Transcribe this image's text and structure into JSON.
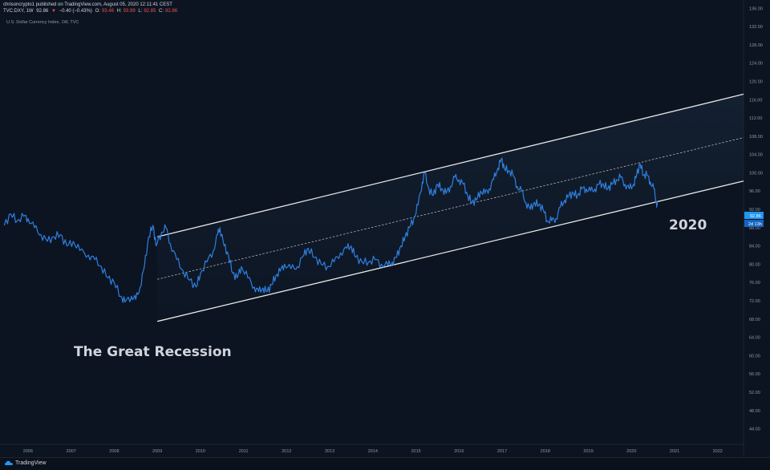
{
  "header": {
    "publisher_line": "chrisoncrypto1 published on TradingView.com, August 05, 2020 12:11:41 CEST",
    "symbol": "TVC:DXY, 1W",
    "last": "92.86",
    "change": "−0.40 (−0.43%)",
    "open_label": "O:",
    "open": "93.46",
    "high_label": "H:",
    "high": "93.99",
    "low_label": "L:",
    "low": "92.85",
    "close_label": "C:",
    "close": "92.86"
  },
  "chart_title": "U.S. Dollar Currency Index, 1W, TVC",
  "price_badge": "92.86",
  "countdown_badge": "2d 13h",
  "annotations": {
    "recession": "The Great Recession",
    "year2020": "2020"
  },
  "footer": {
    "brand": "TradingView"
  },
  "colors": {
    "background": "#0c1421",
    "line": "#2f7fe0",
    "channel": "#e6e6e6",
    "badge": "#2196f3"
  },
  "chart_data": {
    "type": "line",
    "xlabel": "",
    "ylabel": "",
    "xlim": [
      2005.35,
      2022.6
    ],
    "ylim": [
      40.6,
      137.8
    ],
    "x_ticks": [
      "2006",
      "2007",
      "2008",
      "2009",
      "2010",
      "2011",
      "2012",
      "2013",
      "2014",
      "2015",
      "2016",
      "2017",
      "2018",
      "2019",
      "2020",
      "2021",
      "2022"
    ],
    "y_ticks": [
      44,
      48,
      52,
      56,
      60,
      64,
      68,
      72,
      76,
      80,
      84,
      88,
      92,
      96,
      100,
      104,
      108,
      112,
      116,
      120,
      124,
      128,
      132,
      136
    ],
    "series": [
      {
        "values": [
          [
            2005.45,
            88.5
          ],
          [
            2005.6,
            91.0
          ],
          [
            2005.75,
            89.5
          ],
          [
            2005.9,
            90.5
          ],
          [
            2006.0,
            90.0
          ],
          [
            2006.15,
            88.0
          ],
          [
            2006.3,
            86.5
          ],
          [
            2006.45,
            85.0
          ],
          [
            2006.6,
            86.0
          ],
          [
            2006.75,
            86.5
          ],
          [
            2006.9,
            84.0
          ],
          [
            2007.05,
            85.0
          ],
          [
            2007.2,
            83.0
          ],
          [
            2007.4,
            82.0
          ],
          [
            2007.55,
            81.0
          ],
          [
            2007.7,
            79.5
          ],
          [
            2007.85,
            77.0
          ],
          [
            2008.0,
            76.0
          ],
          [
            2008.15,
            73.0
          ],
          [
            2008.25,
            71.7
          ],
          [
            2008.4,
            73.0
          ],
          [
            2008.5,
            72.3
          ],
          [
            2008.6,
            75.0
          ],
          [
            2008.7,
            79.5
          ],
          [
            2008.8,
            86.0
          ],
          [
            2008.9,
            88.5
          ],
          [
            2008.97,
            84.0
          ],
          [
            2009.1,
            87.0
          ],
          [
            2009.2,
            88.0
          ],
          [
            2009.3,
            84.5
          ],
          [
            2009.45,
            81.0
          ],
          [
            2009.6,
            78.5
          ],
          [
            2009.75,
            76.5
          ],
          [
            2009.9,
            75.0
          ],
          [
            2010.0,
            78.0
          ],
          [
            2010.15,
            80.5
          ],
          [
            2010.3,
            83.0
          ],
          [
            2010.4,
            86.5
          ],
          [
            2010.45,
            88.0
          ],
          [
            2010.55,
            84.0
          ],
          [
            2010.65,
            82.0
          ],
          [
            2010.75,
            78.0
          ],
          [
            2010.85,
            77.0
          ],
          [
            2010.95,
            79.5
          ],
          [
            2011.1,
            77.0
          ],
          [
            2011.25,
            75.0
          ],
          [
            2011.35,
            74.0
          ],
          [
            2011.45,
            74.8
          ],
          [
            2011.55,
            74.0
          ],
          [
            2011.65,
            75.5
          ],
          [
            2011.75,
            77.5
          ],
          [
            2011.85,
            78.5
          ],
          [
            2011.95,
            80.0
          ],
          [
            2012.1,
            79.0
          ],
          [
            2012.25,
            79.5
          ],
          [
            2012.4,
            82.0
          ],
          [
            2012.5,
            83.5
          ],
          [
            2012.65,
            81.5
          ],
          [
            2012.8,
            80.0
          ],
          [
            2012.95,
            79.5
          ],
          [
            2013.1,
            80.5
          ],
          [
            2013.25,
            82.5
          ],
          [
            2013.4,
            83.5
          ],
          [
            2013.5,
            84.0
          ],
          [
            2013.6,
            81.5
          ],
          [
            2013.75,
            80.5
          ],
          [
            2013.9,
            80.5
          ],
          [
            2014.05,
            81.0
          ],
          [
            2014.2,
            80.0
          ],
          [
            2014.35,
            79.8
          ],
          [
            2014.45,
            80.5
          ],
          [
            2014.55,
            81.5
          ],
          [
            2014.65,
            84.0
          ],
          [
            2014.75,
            86.0
          ],
          [
            2014.85,
            88.0
          ],
          [
            2014.95,
            90.0
          ],
          [
            2015.05,
            93.0
          ],
          [
            2015.15,
            98.0
          ],
          [
            2015.2,
            100.0
          ],
          [
            2015.3,
            96.5
          ],
          [
            2015.4,
            95.0
          ],
          [
            2015.5,
            97.5
          ],
          [
            2015.6,
            96.5
          ],
          [
            2015.7,
            95.5
          ],
          [
            2015.8,
            97.0
          ],
          [
            2015.9,
            99.0
          ],
          [
            2016.0,
            98.5
          ],
          [
            2016.1,
            97.5
          ],
          [
            2016.2,
            95.0
          ],
          [
            2016.3,
            93.5
          ],
          [
            2016.4,
            94.0
          ],
          [
            2016.5,
            96.0
          ],
          [
            2016.6,
            95.5
          ],
          [
            2016.7,
            96.5
          ],
          [
            2016.8,
            98.5
          ],
          [
            2016.9,
            101.0
          ],
          [
            2016.98,
            103.0
          ],
          [
            2017.05,
            101.0
          ],
          [
            2017.15,
            100.5
          ],
          [
            2017.25,
            99.5
          ],
          [
            2017.35,
            97.0
          ],
          [
            2017.45,
            96.0
          ],
          [
            2017.55,
            93.5
          ],
          [
            2017.65,
            92.0
          ],
          [
            2017.75,
            93.5
          ],
          [
            2017.85,
            93.0
          ],
          [
            2017.95,
            92.0
          ],
          [
            2018.05,
            89.5
          ],
          [
            2018.15,
            89.5
          ],
          [
            2018.25,
            90.0
          ],
          [
            2018.35,
            92.5
          ],
          [
            2018.45,
            94.0
          ],
          [
            2018.55,
            95.0
          ],
          [
            2018.65,
            95.5
          ],
          [
            2018.75,
            95.0
          ],
          [
            2018.85,
            96.5
          ],
          [
            2018.95,
            96.5
          ],
          [
            2019.05,
            96.0
          ],
          [
            2019.15,
            96.5
          ],
          [
            2019.25,
            97.5
          ],
          [
            2019.35,
            97.5
          ],
          [
            2019.45,
            96.5
          ],
          [
            2019.55,
            97.5
          ],
          [
            2019.65,
            98.5
          ],
          [
            2019.75,
            99.0
          ],
          [
            2019.85,
            97.5
          ],
          [
            2019.95,
            96.5
          ],
          [
            2020.05,
            97.5
          ],
          [
            2020.12,
            99.5
          ],
          [
            2020.2,
            102.0
          ],
          [
            2020.28,
            99.5
          ],
          [
            2020.36,
            99.5
          ],
          [
            2020.44,
            98.0
          ],
          [
            2020.52,
            96.5
          ],
          [
            2020.58,
            93.5
          ],
          [
            2020.6,
            92.86
          ]
        ]
      }
    ],
    "channel": {
      "lower": [
        [
          2009.0,
          67.5
        ],
        [
          2022.6,
          98.2
        ]
      ],
      "upper": [
        [
          2009.0,
          86.0
        ],
        [
          2022.6,
          117.2
        ]
      ],
      "middle": [
        [
          2009.0,
          76.7
        ],
        [
          2022.6,
          107.7
        ]
      ]
    }
  }
}
